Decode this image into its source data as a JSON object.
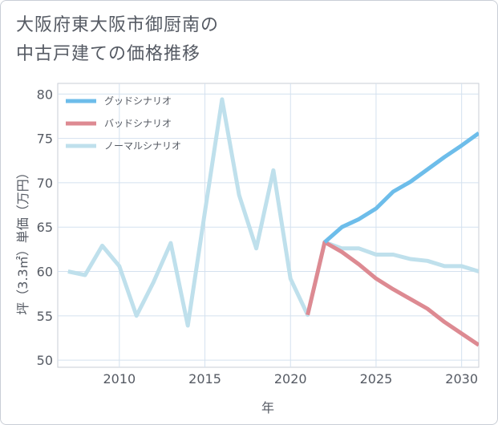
{
  "title": {
    "line1": "大阪府東大阪市御厨南の",
    "line2": "中古戸建ての価格推移"
  },
  "chart_data": {
    "type": "line",
    "xlabel": "年",
    "ylabel": "坪（3.3㎡）単価（万円）",
    "xlim": [
      2006.4,
      2031
    ],
    "ylim": [
      49.2,
      81.2
    ],
    "x_ticks": [
      2010,
      2015,
      2020,
      2025,
      2030
    ],
    "y_ticks": [
      50,
      55,
      60,
      65,
      70,
      75,
      80
    ],
    "x_tick_labels": [
      "2010",
      "2015",
      "2020",
      "2025",
      "2030"
    ],
    "y_tick_labels": [
      "50",
      "55",
      "60",
      "65",
      "70",
      "75",
      "80"
    ],
    "grid": true,
    "legend_position": "top-left",
    "series": [
      {
        "name": "グッドシナリオ",
        "color": "#6dbdea",
        "points": [
          [
            2022,
            63.3
          ],
          [
            2023,
            65.0
          ],
          [
            2024,
            65.9
          ],
          [
            2025,
            67.1
          ],
          [
            2026,
            69.0
          ],
          [
            2027,
            70.1
          ],
          [
            2028,
            71.5
          ],
          [
            2029,
            72.9
          ],
          [
            2030,
            74.2
          ],
          [
            2031,
            75.6
          ]
        ]
      },
      {
        "name": "バッドシナリオ",
        "color": "#dd8a92",
        "points": [
          [
            2021,
            55.1
          ],
          [
            2022,
            63.3
          ],
          [
            2023,
            62.2
          ],
          [
            2024,
            60.8
          ],
          [
            2025,
            59.2
          ],
          [
            2026,
            58.0
          ],
          [
            2027,
            56.9
          ],
          [
            2028,
            55.8
          ],
          [
            2029,
            54.3
          ],
          [
            2030,
            53.0
          ],
          [
            2031,
            51.7
          ]
        ]
      },
      {
        "name": "ノーマルシナリオ",
        "color": "#bfe0ec",
        "points": [
          [
            2007,
            60.0
          ],
          [
            2008,
            59.6
          ],
          [
            2009,
            62.9
          ],
          [
            2010,
            60.6
          ],
          [
            2011,
            55.0
          ],
          [
            2012,
            58.8
          ],
          [
            2013,
            63.2
          ],
          [
            2014,
            53.9
          ],
          [
            2015,
            66.7
          ],
          [
            2016,
            79.4
          ],
          [
            2017,
            68.6
          ],
          [
            2018,
            62.6
          ],
          [
            2019,
            71.4
          ],
          [
            2020,
            59.2
          ],
          [
            2021,
            55.1
          ],
          [
            2022,
            63.3
          ],
          [
            2023,
            62.6
          ],
          [
            2024,
            62.6
          ],
          [
            2025,
            61.9
          ],
          [
            2026,
            61.9
          ],
          [
            2027,
            61.4
          ],
          [
            2028,
            61.2
          ],
          [
            2029,
            60.6
          ],
          [
            2030,
            60.6
          ],
          [
            2031,
            60.0
          ]
        ]
      }
    ]
  }
}
